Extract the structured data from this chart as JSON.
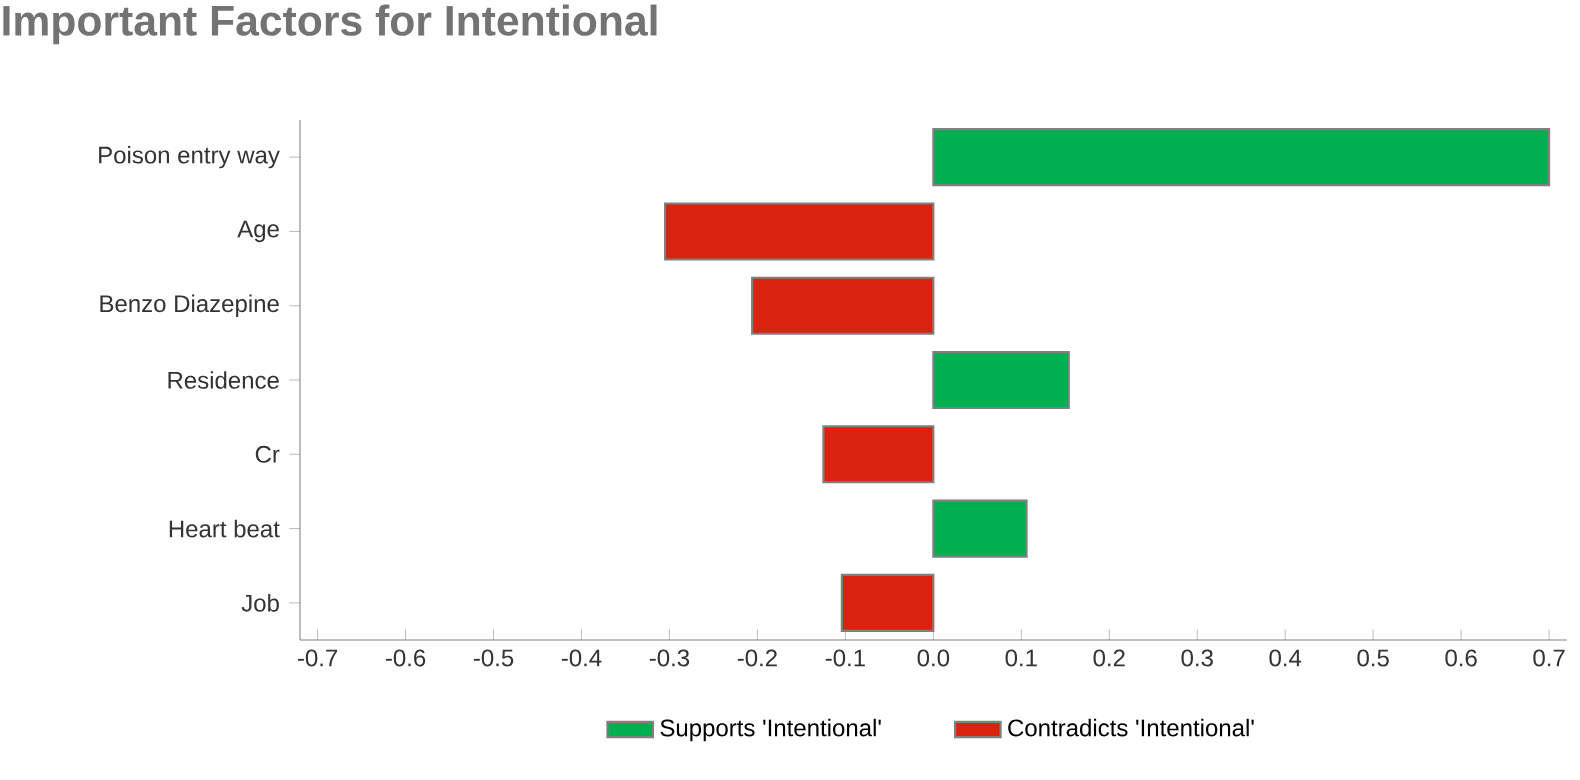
{
  "chart_data": {
    "type": "bar",
    "orientation": "horizontal",
    "title": "Important Factors for Intentional",
    "categories": [
      "Poison entry way",
      "Age",
      "Benzo Diazepine",
      "Residence",
      "Cr",
      "Heart beat",
      "Job"
    ],
    "series": [
      {
        "name": "Supports 'Intentional'",
        "color": "#00b050",
        "values": [
          0.7,
          null,
          null,
          0.154,
          null,
          0.106,
          null
        ]
      },
      {
        "name": "Contradicts 'Intentional'",
        "color": "#d9230f",
        "values": [
          null,
          -0.305,
          -0.206,
          null,
          -0.125,
          null,
          -0.104
        ]
      }
    ],
    "xlim": [
      -0.72,
      0.72
    ],
    "xticks": [
      {
        "value": -0.7,
        "label": "-0.7"
      },
      {
        "value": -0.6,
        "label": "-0.6"
      },
      {
        "value": -0.5,
        "label": "-0.5"
      },
      {
        "value": -0.4,
        "label": "-0.4"
      },
      {
        "value": -0.3,
        "label": "-0.3"
      },
      {
        "value": -0.2,
        "label": "-0.2"
      },
      {
        "value": -0.1,
        "label": "-0.1"
      },
      {
        "value": 0,
        "label": "0.0"
      },
      {
        "value": 0.1,
        "label": "0.1"
      },
      {
        "value": 0.2,
        "label": "0.2"
      },
      {
        "value": 0.3,
        "label": "0.3"
      },
      {
        "value": 0.4,
        "label": "0.4"
      },
      {
        "value": 0.5,
        "label": "0.5"
      },
      {
        "value": 0.6,
        "label": "0.6"
      },
      {
        "value": 0.7,
        "label": "0.7"
      }
    ],
    "legend": "bottom",
    "grid": false
  }
}
